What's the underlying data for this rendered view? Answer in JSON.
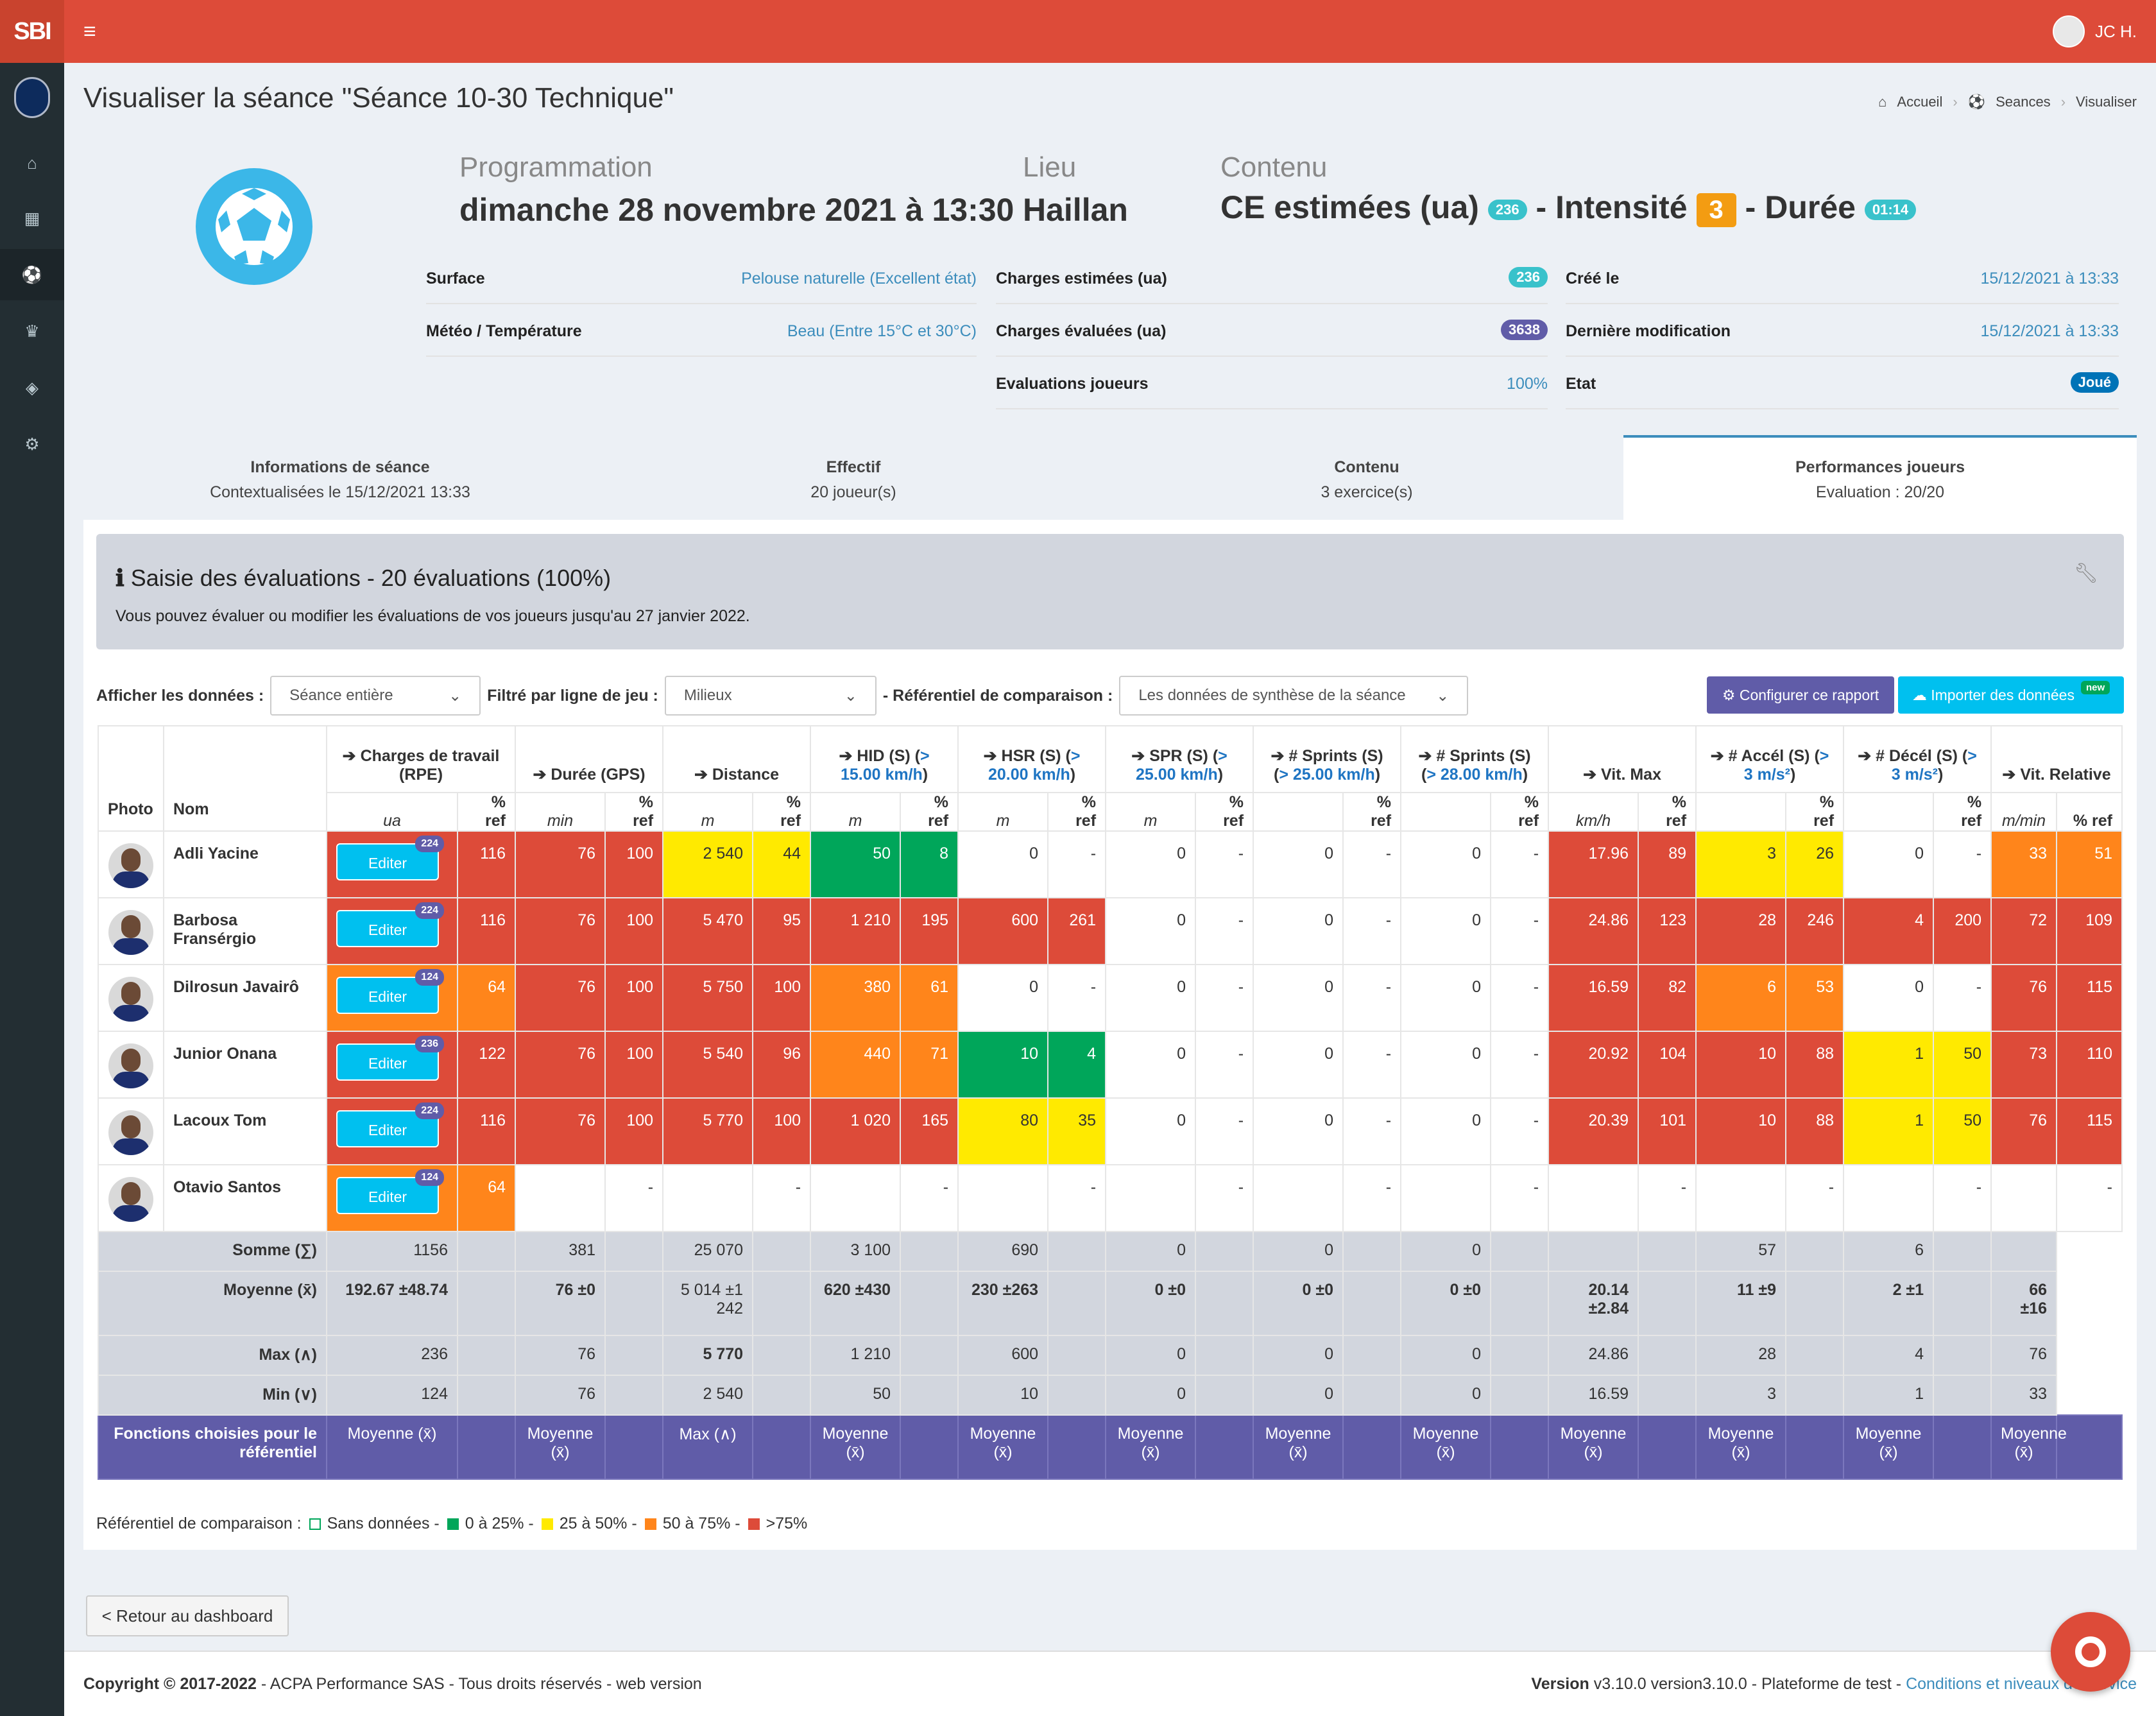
{
  "app": {
    "logo": "SBI",
    "user": "JC H."
  },
  "sidebar": {
    "icons": [
      "home-icon",
      "calendar-icon",
      "soccer-ball-icon",
      "trophy-icon",
      "cube-icon",
      "gear-icon"
    ]
  },
  "page": {
    "title": "Visualiser la séance \"Séance 10-30 Technique\""
  },
  "breadcrumb": {
    "home": "Accueil",
    "seances": "Seances",
    "current": "Visualiser"
  },
  "hero": {
    "prog_label": "Programmation",
    "prog_value": "dimanche 28 novembre 2021 à 13:30",
    "lieu_label": "Lieu",
    "lieu_value": "Haillan",
    "contenu_label": "Contenu",
    "ce_text": "CE estimées (ua)",
    "ce_badge": "236",
    "intensite_text": "- Intensité",
    "intensite_value": "3",
    "duree_text": "- Durée",
    "duree_badge": "01:14"
  },
  "details": {
    "surface_k": "Surface",
    "surface_v": "Pelouse naturelle (Excellent état)",
    "meteo_k": "Météo / Température",
    "meteo_v": "Beau (Entre 15°C et 30°C)",
    "ce_k": "Charges estimées (ua)",
    "ce_v": "236",
    "cev_k": "Charges évaluées (ua)",
    "cev_v": "3638",
    "eval_k": "Evaluations joueurs",
    "eval_v": "100%",
    "cree_k": "Créé le",
    "cree_v": "15/12/2021 à 13:33",
    "modif_k": "Dernière modification",
    "modif_v": "15/12/2021 à 13:33",
    "etat_k": "Etat",
    "etat_v": "Joué"
  },
  "tabs": [
    {
      "title": "Informations de séance",
      "sub": "Contextualisées le 15/12/2021 13:33"
    },
    {
      "title": "Effectif",
      "sub": "20 joueur(s)"
    },
    {
      "title": "Contenu",
      "sub": "3 exercice(s)"
    },
    {
      "title": "Performances joueurs",
      "sub": "Evaluation : 20/20"
    }
  ],
  "info": {
    "title": "Saisie des évaluations - 20 évaluations (100%)",
    "text": "Vous pouvez évaluer ou modifier les évaluations de vos joueurs jusqu'au 27 janvier 2022."
  },
  "filters": {
    "afficher_label": "Afficher les données :",
    "afficher_value": "Séance entière",
    "ligne_label": "Filtré par ligne de jeu :",
    "ligne_value": "Milieux",
    "ref_label": "- Référentiel de comparaison :",
    "ref_value": "Les données de synthèse de la séance",
    "config_btn": "Configurer ce rapport",
    "import_btn": "Importer des données",
    "new_badge": "new"
  },
  "table": {
    "photo_h": "Photo",
    "nom_h": "Nom",
    "columns": [
      {
        "title": "Charges de travail (RPE)",
        "unit": "ua"
      },
      {
        "title": "Durée (GPS)",
        "unit": "min"
      },
      {
        "title": "Distance",
        "unit": "m"
      },
      {
        "title": "HID (S) (",
        "link": "> 15.00 km/h",
        "close": ")",
        "unit": "m"
      },
      {
        "title": "HSR (S) (",
        "link": "> 20.00 km/h",
        "close": ")",
        "unit": "m"
      },
      {
        "title": "SPR (S) (",
        "link": "> 25.00 km/h",
        "close": ")",
        "unit": "m"
      },
      {
        "title": "# Sprints (S) (",
        "link": "> 25.00 km/h",
        "close": ")",
        "unit": ""
      },
      {
        "title": "# Sprints (S) (",
        "link": "> 28.00 km/h",
        "close": ")",
        "unit": ""
      },
      {
        "title": "Vit. Max",
        "unit": "km/h"
      },
      {
        "title": "# Accél (S) (",
        "link": "> 3 m/s²",
        "close": ")",
        "unit": ""
      },
      {
        "title": "# Décél (S) (",
        "link": "> 3 m/s²",
        "close": ")",
        "unit": ""
      },
      {
        "title": "Vit. Relative",
        "unit": "m/min"
      }
    ],
    "pct_ref": "% ref",
    "edit_label": "Editer",
    "players": [
      {
        "name": "Adli Yacine",
        "badge": "224",
        "cells": [
          [
            "116",
            "red"
          ],
          [
            "76",
            "red"
          ],
          [
            "100",
            "red"
          ],
          [
            "2 540",
            "yel"
          ],
          [
            "44",
            "yel"
          ],
          [
            "50",
            "grn"
          ],
          [
            "8",
            "grn"
          ],
          [
            "0",
            ""
          ],
          [
            "-",
            ""
          ],
          [
            "0",
            ""
          ],
          [
            "-",
            ""
          ],
          [
            "0",
            ""
          ],
          [
            "-",
            ""
          ],
          [
            "0",
            ""
          ],
          [
            "-",
            ""
          ],
          [
            "17.96",
            "red"
          ],
          [
            "89",
            "red"
          ],
          [
            "3",
            "yel"
          ],
          [
            "26",
            "yel"
          ],
          [
            "0",
            ""
          ],
          [
            "-",
            ""
          ],
          [
            "33",
            "org"
          ],
          [
            "51",
            "org"
          ]
        ],
        "rpe": "red"
      },
      {
        "name": "Barbosa Fransérgio",
        "badge": "224",
        "cells": [
          [
            "116",
            "red"
          ],
          [
            "76",
            "red"
          ],
          [
            "100",
            "red"
          ],
          [
            "5 470",
            "red"
          ],
          [
            "95",
            "red"
          ],
          [
            "1 210",
            "red"
          ],
          [
            "195",
            "red"
          ],
          [
            "600",
            "red"
          ],
          [
            "261",
            "red"
          ],
          [
            "0",
            ""
          ],
          [
            "-",
            ""
          ],
          [
            "0",
            ""
          ],
          [
            "-",
            ""
          ],
          [
            "0",
            ""
          ],
          [
            "-",
            ""
          ],
          [
            "24.86",
            "red"
          ],
          [
            "123",
            "red"
          ],
          [
            "28",
            "red"
          ],
          [
            "246",
            "red"
          ],
          [
            "4",
            "red"
          ],
          [
            "200",
            "red"
          ],
          [
            "72",
            "red"
          ],
          [
            "109",
            "red"
          ]
        ],
        "rpe": "red"
      },
      {
        "name": "Dilrosun Javairô",
        "badge": "124",
        "cells": [
          [
            "64",
            "org"
          ],
          [
            "76",
            "red"
          ],
          [
            "100",
            "red"
          ],
          [
            "5 750",
            "red"
          ],
          [
            "100",
            "red"
          ],
          [
            "380",
            "org"
          ],
          [
            "61",
            "org"
          ],
          [
            "0",
            ""
          ],
          [
            "-",
            ""
          ],
          [
            "0",
            ""
          ],
          [
            "-",
            ""
          ],
          [
            "0",
            ""
          ],
          [
            "-",
            ""
          ],
          [
            "0",
            ""
          ],
          [
            "-",
            ""
          ],
          [
            "16.59",
            "red"
          ],
          [
            "82",
            "red"
          ],
          [
            "6",
            "org"
          ],
          [
            "53",
            "org"
          ],
          [
            "0",
            ""
          ],
          [
            "-",
            ""
          ],
          [
            "76",
            "red"
          ],
          [
            "115",
            "red"
          ]
        ],
        "rpe": "org"
      },
      {
        "name": "Junior Onana",
        "badge": "236",
        "cells": [
          [
            "122",
            "red"
          ],
          [
            "76",
            "red"
          ],
          [
            "100",
            "red"
          ],
          [
            "5 540",
            "red"
          ],
          [
            "96",
            "red"
          ],
          [
            "440",
            "org"
          ],
          [
            "71",
            "org"
          ],
          [
            "10",
            "grn"
          ],
          [
            "4",
            "grn"
          ],
          [
            "0",
            ""
          ],
          [
            "-",
            ""
          ],
          [
            "0",
            ""
          ],
          [
            "-",
            ""
          ],
          [
            "0",
            ""
          ],
          [
            "-",
            ""
          ],
          [
            "20.92",
            "red"
          ],
          [
            "104",
            "red"
          ],
          [
            "10",
            "red"
          ],
          [
            "88",
            "red"
          ],
          [
            "1",
            "yel"
          ],
          [
            "50",
            "yel"
          ],
          [
            "73",
            "red"
          ],
          [
            "110",
            "red"
          ]
        ],
        "rpe": "red"
      },
      {
        "name": "Lacoux Tom",
        "badge": "224",
        "cells": [
          [
            "116",
            "red"
          ],
          [
            "76",
            "red"
          ],
          [
            "100",
            "red"
          ],
          [
            "5 770",
            "red"
          ],
          [
            "100",
            "red"
          ],
          [
            "1 020",
            "red"
          ],
          [
            "165",
            "red"
          ],
          [
            "80",
            "yel"
          ],
          [
            "35",
            "yel"
          ],
          [
            "0",
            ""
          ],
          [
            "-",
            ""
          ],
          [
            "0",
            ""
          ],
          [
            "-",
            ""
          ],
          [
            "0",
            ""
          ],
          [
            "-",
            ""
          ],
          [
            "20.39",
            "red"
          ],
          [
            "101",
            "red"
          ],
          [
            "10",
            "red"
          ],
          [
            "88",
            "red"
          ],
          [
            "1",
            "yel"
          ],
          [
            "50",
            "yel"
          ],
          [
            "76",
            "red"
          ],
          [
            "115",
            "red"
          ]
        ],
        "rpe": "red"
      },
      {
        "name": "Otavio Santos",
        "badge": "124",
        "cells": [
          [
            "64",
            "org"
          ],
          [
            "",
            ""
          ],
          [
            "-",
            ""
          ],
          [
            "",
            ""
          ],
          [
            "-",
            ""
          ],
          [
            "",
            ""
          ],
          [
            "-",
            ""
          ],
          [
            "",
            ""
          ],
          [
            "-",
            ""
          ],
          [
            "",
            ""
          ],
          [
            "-",
            ""
          ],
          [
            "",
            ""
          ],
          [
            "-",
            ""
          ],
          [
            "",
            ""
          ],
          [
            "-",
            ""
          ],
          [
            "",
            ""
          ],
          [
            "-",
            ""
          ],
          [
            "",
            ""
          ],
          [
            "-",
            ""
          ],
          [
            "",
            ""
          ],
          [
            "-",
            ""
          ],
          [
            "",
            ""
          ],
          [
            "-",
            ""
          ]
        ],
        "rpe": "org"
      }
    ],
    "stats": [
      {
        "label": "Somme (∑)",
        "vals": [
          "1156",
          "",
          "381",
          "",
          "25 070",
          "",
          "3 100",
          "",
          "690",
          "",
          "0",
          "",
          "0",
          "",
          "0",
          "",
          "",
          "",
          "57",
          "",
          "6",
          "",
          ""
        ]
      },
      {
        "label": "Moyenne (x̄)",
        "vals": [
          "192.67 ±48.74",
          "",
          "76 ±0",
          "",
          "5 014 ±1 242",
          "",
          "620 ±430",
          "",
          "230 ±263",
          "",
          "0 ±0",
          "",
          "0 ±0",
          "",
          "0 ±0",
          "",
          "20.14 ±2.84",
          "",
          "11 ±9",
          "",
          "2 ±1",
          "",
          "66 ±16"
        ]
      },
      {
        "label": "Max (∧)",
        "vals": [
          "236",
          "",
          "76",
          "",
          "5 770",
          "",
          "1 210",
          "",
          "600",
          "",
          "0",
          "",
          "0",
          "",
          "0",
          "",
          "24.86",
          "",
          "28",
          "",
          "4",
          "",
          "76"
        ]
      },
      {
        "label": "Min (∨)",
        "vals": [
          "124",
          "",
          "76",
          "",
          "2 540",
          "",
          "50",
          "",
          "10",
          "",
          "0",
          "",
          "0",
          "",
          "0",
          "",
          "16.59",
          "",
          "3",
          "",
          "1",
          "",
          "33"
        ]
      }
    ],
    "fn_label": "Fonctions choisies pour le référentiel",
    "fn_vals": [
      "Moyenne (x̄)",
      "Moyenne (x̄)",
      "Max (∧)",
      "Moyenne (x̄)",
      "Moyenne (x̄)",
      "Moyenne (x̄)",
      "Moyenne (x̄)",
      "Moyenne (x̄)",
      "Moyenne (x̄)",
      "Moyenne (x̄)",
      "Moyenne (x̄)",
      "Moyenne (x̄)"
    ]
  },
  "legend": {
    "label": "Référentiel de comparaison :",
    "l0": "Sans données -",
    "l1": "0 à 25% -",
    "l2": "25 à 50% -",
    "l3": "50 à 75% -",
    "l4": ">75%"
  },
  "back": "< Retour au dashboard",
  "footer": {
    "copyright": "Copyright © 2017-2022",
    "company": " - ACPA Performance SAS - Tous droits réservés - web version",
    "version_label": "Version",
    "version": " v3.10.0 version3.10.0 - Plateforme de test - ",
    "conditions": "Conditions et niveaux de service"
  },
  "colors": {
    "topbar": "#dd4b39",
    "red": "#dd4b39",
    "orange": "#ff851b",
    "yellow": "#ffea00",
    "green": "#00a65a",
    "purple": "#605ca8",
    "cyan": "#00c0ef"
  }
}
